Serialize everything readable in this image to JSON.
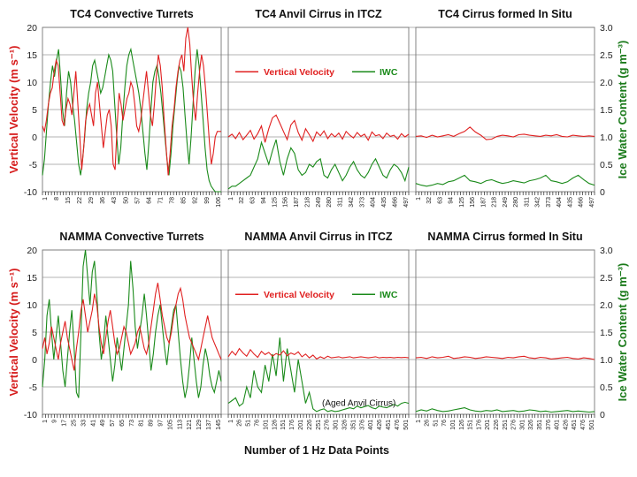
{
  "colors": {
    "velocity": "#e02020",
    "iwc": "#1a8a1a",
    "grid": "#9a9a9a"
  },
  "chart_data": [
    {
      "type": "line",
      "title": "TC4 Convective Turrets",
      "ylabel": "Vertical Velocity (m s⁻¹)",
      "ylim": [
        -10,
        20
      ],
      "yticks": [
        "20",
        "15",
        "10",
        "5",
        "0",
        "-5",
        "-10"
      ],
      "xticks": [
        "1",
        "8",
        "15",
        "22",
        "29",
        "36",
        "43",
        "50",
        "57",
        "64",
        "71",
        "78",
        "85",
        "92",
        "99",
        "106"
      ],
      "series": [
        {
          "name": "Vertical Velocity",
          "values": [
            2,
            1,
            3,
            6,
            8,
            9,
            12,
            14,
            13,
            8,
            3,
            2,
            5,
            7,
            6,
            4,
            8,
            12,
            6,
            0,
            -6,
            -2,
            3,
            5,
            6,
            4,
            2,
            8,
            10,
            6,
            2,
            -2,
            1,
            4,
            5,
            2,
            -5,
            -6,
            2,
            8,
            6,
            3,
            5,
            7,
            8,
            10,
            9,
            6,
            2,
            1,
            3,
            6,
            9,
            12,
            8,
            4,
            2,
            6,
            11,
            15,
            13,
            9,
            3,
            -2,
            -7,
            -3,
            2,
            5,
            9,
            12,
            14,
            15,
            12,
            18,
            20,
            17,
            11,
            6,
            3,
            8,
            12,
            15,
            13,
            9,
            4,
            -1,
            -5,
            -3,
            0,
            1,
            1,
            1
          ]
        },
        {
          "name": "IWC",
          "values": [
            0.3,
            0.6,
            1.1,
            1.6,
            2.0,
            2.3,
            2.1,
            2.4,
            2.6,
            2.1,
            1.5,
            1.2,
            1.8,
            2.2,
            2.0,
            1.6,
            1.3,
            0.9,
            0.5,
            0.3,
            0.6,
            1.0,
            1.5,
            1.8,
            2.0,
            2.3,
            2.4,
            2.2,
            2.0,
            1.8,
            1.9,
            2.1,
            2.3,
            2.5,
            2.4,
            2.2,
            1.6,
            1.0,
            0.5,
            0.8,
            1.4,
            1.9,
            2.3,
            2.5,
            2.6,
            2.4,
            2.2,
            2.0,
            1.8,
            1.5,
            1.1,
            0.7,
            0.4,
            0.9,
            1.5,
            2.0,
            2.2,
            2.3,
            2.1,
            1.8,
            1.4,
            1.0,
            0.6,
            0.3,
            0.7,
            1.2,
            1.6,
            2.0,
            2.3,
            2.2,
            1.9,
            1.4,
            0.9,
            0.5,
            1.0,
            1.6,
            2.2,
            2.6,
            2.3,
            1.8,
            1.3,
            0.8,
            0.4,
            0.2,
            0.1,
            0.05,
            0,
            0,
            0,
            0
          ]
        }
      ]
    },
    {
      "type": "line",
      "title": "TC4 Anvil Cirrus in ITCZ",
      "legend": [
        "Vertical Velocity",
        "IWC"
      ],
      "ylim": [
        -10,
        20
      ],
      "xticks": [
        "1",
        "32",
        "63",
        "94",
        "125",
        "156",
        "187",
        "218",
        "249",
        "280",
        "311",
        "342",
        "373",
        "404",
        "435",
        "466",
        "497"
      ],
      "series": [
        {
          "name": "Vertical Velocity",
          "values": [
            0,
            0.5,
            -0.3,
            0.8,
            -0.5,
            0.3,
            1.2,
            -0.4,
            0.6,
            2.0,
            -1.0,
            1.5,
            3.5,
            4.0,
            2.5,
            1.0,
            -0.5,
            2.2,
            3.0,
            0.8,
            -0.6,
            1.5,
            0.4,
            -0.8,
            0.9,
            0.2,
            1.1,
            -0.3,
            0.6,
            0.0,
            0.7,
            -0.4,
            1.0,
            0.3,
            -0.2,
            0.8,
            0.1,
            0.5,
            -0.6,
            0.9,
            0.2,
            0.4,
            -0.3,
            0.7,
            0.1,
            0.3,
            -0.4,
            0.6,
            0.0,
            0.5
          ]
        },
        {
          "name": "IWC",
          "values": [
            0.05,
            0.1,
            0.1,
            0.15,
            0.2,
            0.25,
            0.3,
            0.45,
            0.6,
            0.9,
            0.7,
            0.5,
            0.75,
            0.95,
            0.55,
            0.3,
            0.6,
            0.8,
            0.7,
            0.4,
            0.3,
            0.35,
            0.5,
            0.45,
            0.55,
            0.6,
            0.3,
            0.25,
            0.4,
            0.5,
            0.35,
            0.2,
            0.3,
            0.45,
            0.55,
            0.4,
            0.3,
            0.25,
            0.35,
            0.5,
            0.6,
            0.45,
            0.3,
            0.25,
            0.4,
            0.5,
            0.45,
            0.35,
            0.2,
            0.45
          ]
        }
      ]
    },
    {
      "type": "line",
      "title": "TC4 Cirrus formed In Situ",
      "ylabel": "Ice Water Content (g m⁻³)",
      "ylim": [
        0,
        3.0
      ],
      "yticks": [
        "3.0",
        "2.5",
        "2.0",
        "1.5",
        "1.0",
        "0.5",
        "0"
      ],
      "xticks": [
        "1",
        "32",
        "63",
        "94",
        "125",
        "156",
        "187",
        "218",
        "249",
        "280",
        "311",
        "342",
        "373",
        "404",
        "435",
        "466",
        "497"
      ],
      "series": [
        {
          "name": "Vertical Velocity",
          "values": [
            0.1,
            0.2,
            -0.1,
            0.3,
            0.0,
            0.2,
            0.4,
            0.1,
            0.6,
            1.0,
            1.8,
            0.9,
            0.3,
            -0.5,
            -0.4,
            0.1,
            0.3,
            0.2,
            0.0,
            0.4,
            0.5,
            0.3,
            0.2,
            0.1,
            0.3,
            0.2,
            0.4,
            0.1,
            0.0,
            0.3,
            0.2,
            0.1,
            0.2,
            0.1
          ]
        },
        {
          "name": "IWC",
          "values": [
            0.15,
            0.12,
            0.1,
            0.12,
            0.15,
            0.13,
            0.18,
            0.2,
            0.25,
            0.3,
            0.2,
            0.18,
            0.15,
            0.2,
            0.22,
            0.18,
            0.15,
            0.17,
            0.2,
            0.18,
            0.16,
            0.2,
            0.22,
            0.25,
            0.3,
            0.2,
            0.18,
            0.15,
            0.18,
            0.25,
            0.3,
            0.22,
            0.15,
            0.12
          ]
        }
      ]
    },
    {
      "type": "line",
      "title": "NAMMA Convective Turrets",
      "ylabel": "Vertical Velocity (m s⁻¹)",
      "ylim": [
        -10,
        20
      ],
      "yticks": [
        "20",
        "15",
        "10",
        "5",
        "0",
        "-5",
        "-10"
      ],
      "xticks": [
        "1",
        "9",
        "17",
        "25",
        "33",
        "41",
        "49",
        "57",
        "65",
        "73",
        "81",
        "89",
        "97",
        "105",
        "113",
        "121",
        "129",
        "137",
        "145"
      ],
      "series": [
        {
          "name": "Vertical Velocity",
          "values": [
            2,
            4,
            1,
            3,
            6,
            4,
            2,
            0,
            3,
            5,
            7,
            4,
            2,
            0,
            -2,
            2,
            5,
            9,
            11,
            8,
            5,
            7,
            9,
            12,
            10,
            6,
            3,
            1,
            4,
            7,
            9,
            6,
            3,
            1,
            2,
            4,
            6,
            5,
            3,
            1,
            2,
            3,
            5,
            6,
            4,
            2,
            1,
            3,
            6,
            9,
            12,
            14,
            11,
            8,
            6,
            4,
            3,
            5,
            8,
            10,
            12,
            13,
            11,
            8,
            6,
            4,
            3,
            2,
            1,
            0,
            2,
            4,
            6,
            8,
            6,
            4,
            3,
            2,
            1,
            0
          ]
        },
        {
          "name": "IWC",
          "values": [
            0.5,
            1.0,
            1.8,
            2.1,
            1.5,
            1.0,
            1.4,
            1.8,
            1.3,
            0.8,
            0.5,
            1.0,
            1.5,
            1.9,
            1.2,
            0.4,
            0.3,
            1.5,
            2.7,
            3.0,
            2.5,
            2.0,
            2.6,
            2.8,
            2.2,
            1.5,
            1.0,
            1.3,
            1.8,
            1.4,
            1.0,
            0.6,
            0.9,
            1.4,
            1.1,
            0.8,
            1.2,
            1.6,
            2.0,
            2.8,
            2.3,
            1.6,
            1.2,
            1.5,
            1.8,
            2.2,
            1.8,
            1.3,
            0.8,
            1.1,
            1.5,
            1.8,
            2.0,
            1.6,
            1.2,
            0.9,
            1.3,
            1.6,
            1.9,
            2.0,
            1.5,
            1.0,
            0.6,
            0.3,
            0.5,
            0.9,
            1.4,
            1.0,
            0.6,
            0.3,
            0.5,
            0.9,
            1.2,
            1.0,
            0.7,
            0.5,
            0.4,
            0.6,
            0.8,
            0.6
          ]
        }
      ]
    },
    {
      "type": "line",
      "title": "NAMMA Anvil Cirrus in ITCZ",
      "legend": [
        "Vertical Velocity",
        "IWC"
      ],
      "annotation": "(Aged Anvil Cirrus)",
      "ylim": [
        -10,
        20
      ],
      "xticks": [
        "1",
        "26",
        "51",
        "76",
        "101",
        "126",
        "151",
        "176",
        "201",
        "226",
        "251",
        "276",
        "301",
        "326",
        "351",
        "376",
        "401",
        "426",
        "451",
        "476",
        "501"
      ],
      "series": [
        {
          "name": "Vertical Velocity",
          "values": [
            0.5,
            1.5,
            0.8,
            2.0,
            1.2,
            0.6,
            1.8,
            1.0,
            0.4,
            1.5,
            0.9,
            1.3,
            0.6,
            1.1,
            0.8,
            1.6,
            0.7,
            1.2,
            0.9,
            1.4,
            0.5,
            1.0,
            0.3,
            0.8,
            0.1,
            0.5,
            0.2,
            0.6,
            0.3,
            0.4,
            0.5,
            0.3,
            0.4,
            0.5,
            0.3,
            0.4,
            0.5,
            0.4,
            0.3,
            0.4,
            0.5,
            0.3,
            0.4,
            0.35,
            0.4,
            0.3,
            0.4,
            0.35,
            0.4,
            0.3
          ]
        },
        {
          "name": "IWC",
          "values": [
            0.2,
            0.25,
            0.3,
            0.15,
            0.2,
            0.5,
            0.3,
            0.8,
            0.5,
            0.4,
            0.9,
            0.6,
            1.1,
            0.7,
            1.4,
            0.6,
            1.2,
            0.8,
            0.4,
            1.0,
            0.6,
            0.2,
            0.4,
            0.1,
            0.05,
            0.08,
            0.1,
            0.05,
            0.07,
            0.05,
            0.06,
            0.08,
            0.1,
            0.12,
            0.1,
            0.15,
            0.12,
            0.14,
            0.16,
            0.12,
            0.1,
            0.15,
            0.13,
            0.12,
            0.15,
            0.18,
            0.15,
            0.2,
            0.22,
            0.2
          ]
        }
      ]
    },
    {
      "type": "line",
      "title": "NAMMA Cirrus formed In Situ",
      "ylabel": "Ice Water Content (g m⁻³)",
      "ylim": [
        0,
        3.0
      ],
      "yticks": [
        "3.0",
        "2.5",
        "2.0",
        "1.5",
        "1.0",
        "0.5",
        "0"
      ],
      "xticks": [
        "1",
        "26",
        "51",
        "76",
        "101",
        "126",
        "151",
        "176",
        "201",
        "226",
        "251",
        "276",
        "301",
        "326",
        "351",
        "376",
        "401",
        "426",
        "451",
        "476",
        "501"
      ],
      "series": [
        {
          "name": "Vertical Velocity",
          "values": [
            0.3,
            0.4,
            0.2,
            0.5,
            0.3,
            0.4,
            0.6,
            0.2,
            0.3,
            0.5,
            0.4,
            0.2,
            0.3,
            0.5,
            0.4,
            0.3,
            0.2,
            0.4,
            0.3,
            0.5,
            0.6,
            0.3,
            0.2,
            0.4,
            0.3,
            0.1,
            0.2,
            0.3,
            0.4,
            0.2,
            0.1,
            0.3,
            0.2,
            0.0
          ]
        },
        {
          "name": "IWC",
          "values": [
            0.05,
            0.08,
            0.06,
            0.1,
            0.07,
            0.05,
            0.06,
            0.08,
            0.1,
            0.12,
            0.08,
            0.06,
            0.05,
            0.07,
            0.06,
            0.08,
            0.05,
            0.06,
            0.07,
            0.05,
            0.06,
            0.08,
            0.07,
            0.05,
            0.06,
            0.04,
            0.05,
            0.06,
            0.07,
            0.05,
            0.06,
            0.05,
            0.04,
            0.05
          ]
        }
      ]
    }
  ],
  "axis_titles": {
    "x": "Number of 1 Hz Data Points",
    "y_left": "Vertical Velocity (m s⁻¹)",
    "y_right": "Ice Water Content (g m⁻³)"
  }
}
